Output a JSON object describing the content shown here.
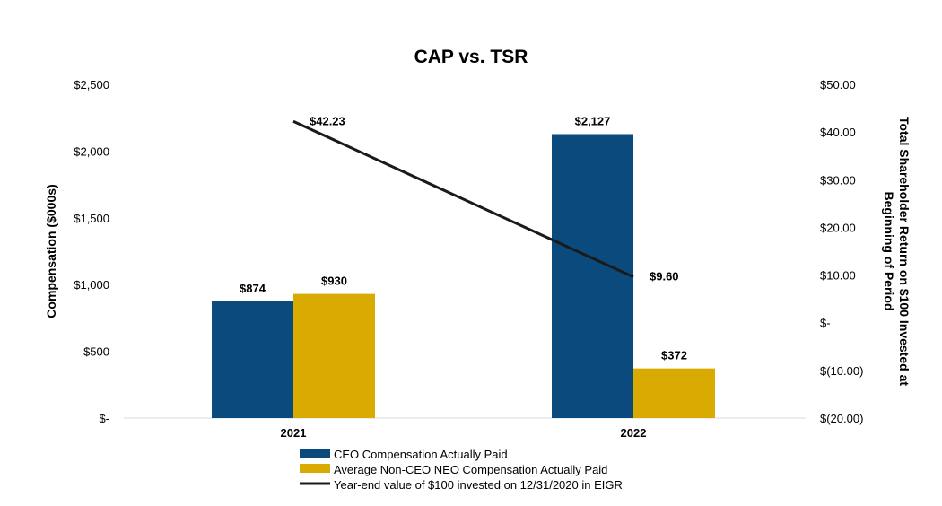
{
  "chart_data": {
    "type": "bar",
    "title": "CAP vs. TSR",
    "categories": [
      "2021",
      "2022"
    ],
    "ylabel": "Compensation ($000s)",
    "y2label_line1": "Total Shareholder Return on $100 Invested at",
    "y2label_line2": "Beginning of Period",
    "ylim": [
      0,
      2500
    ],
    "y2lim": [
      -20,
      50
    ],
    "y_ticks": [
      {
        "value": 0,
        "label": "$-"
      },
      {
        "value": 500,
        "label": "$500"
      },
      {
        "value": 1000,
        "label": "$1,000"
      },
      {
        "value": 1500,
        "label": "$1,500"
      },
      {
        "value": 2000,
        "label": "$2,000"
      },
      {
        "value": 2500,
        "label": "$2,500"
      }
    ],
    "y2_ticks": [
      {
        "value": -20,
        "label": "$(20.00)"
      },
      {
        "value": -10,
        "label": "$(10.00)"
      },
      {
        "value": 0,
        "label": "$-"
      },
      {
        "value": 10,
        "label": "$10.00"
      },
      {
        "value": 20,
        "label": "$20.00"
      },
      {
        "value": 30,
        "label": "$30.00"
      },
      {
        "value": 40,
        "label": "$40.00"
      },
      {
        "value": 50,
        "label": "$50.00"
      }
    ],
    "grid": false,
    "legend_position": "bottom",
    "series": [
      {
        "name": "CEO Compensation Actually Paid",
        "kind": "bar",
        "axis": "left",
        "color": "#0B4A7D",
        "values": [
          874,
          2127
        ],
        "labels": [
          "$874",
          "$2,127"
        ]
      },
      {
        "name": "Average Non-CEO NEO Compensation Actually Paid",
        "kind": "bar",
        "axis": "left",
        "color": "#D9AA00",
        "values": [
          930,
          372
        ],
        "labels": [
          "$930",
          "$372"
        ]
      },
      {
        "name": "Year-end value of $100 invested on 12/31/2020 in EIGR",
        "kind": "line",
        "axis": "right",
        "color": "#1a1a1a",
        "values": [
          42.23,
          9.6
        ],
        "labels": [
          "$42.23",
          "$9.60"
        ]
      }
    ]
  }
}
